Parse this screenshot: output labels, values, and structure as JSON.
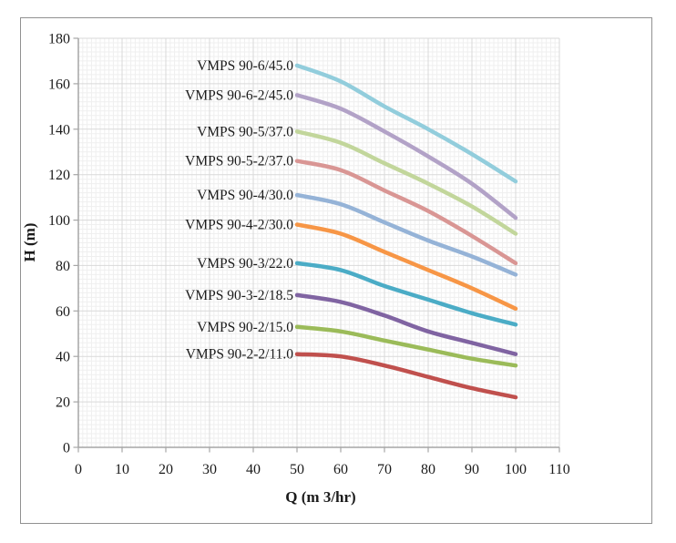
{
  "chart_data": {
    "type": "line",
    "title": "",
    "xlabel": "Q (m 3/hr)",
    "ylabel": "H (m)",
    "xlim": [
      0,
      110
    ],
    "ylim": [
      0,
      180
    ],
    "x_ticks": [
      0,
      10,
      20,
      30,
      40,
      50,
      60,
      70,
      80,
      90,
      100,
      110
    ],
    "y_ticks": [
      180,
      160,
      140,
      120,
      100,
      80,
      60,
      40,
      20,
      0
    ],
    "x_minor_step": 1,
    "y_minor_step": 2,
    "grid": "major and minor gridlines shown",
    "legend_position": "inline labels left of each curve start",
    "x": [
      50,
      60,
      70,
      80,
      90,
      100
    ],
    "series": [
      {
        "name": "VMPS 90-6/45.0",
        "color": "#92CDDC",
        "values": [
          168,
          161,
          150,
          140,
          129,
          117
        ]
      },
      {
        "name": "VMPS 90-6-2/45.0",
        "color": "#B2A2C7",
        "values": [
          155,
          149,
          139,
          128,
          116,
          101
        ]
      },
      {
        "name": "VMPS 90-5/37.0",
        "color": "#C2D69B",
        "values": [
          139,
          134,
          125,
          116,
          106,
          94
        ]
      },
      {
        "name": "VMPS 90-5-2/37.0",
        "color": "#D99694",
        "values": [
          126,
          122,
          113,
          104,
          93,
          81
        ]
      },
      {
        "name": "VMPS 90-4/30.0",
        "color": "#95B3D7",
        "values": [
          111,
          107,
          99,
          91,
          84,
          76
        ]
      },
      {
        "name": "VMPS 90-4-2/30.0",
        "color": "#F79646",
        "values": [
          98,
          94,
          86,
          78,
          70,
          61
        ]
      },
      {
        "name": "VMPS 90-3/22.0",
        "color": "#4BACC6",
        "values": [
          81,
          78,
          71,
          65,
          59,
          54
        ]
      },
      {
        "name": "VMPS 90-3-2/18.5",
        "color": "#8064A2",
        "values": [
          67,
          64,
          58,
          51,
          46,
          41
        ]
      },
      {
        "name": "VMPS 90-2/15.0",
        "color": "#9BBB59",
        "values": [
          53,
          51,
          47,
          43,
          39,
          36
        ]
      },
      {
        "name": "VMPS 90-2-2/11.0",
        "color": "#C0504D",
        "values": [
          41,
          40,
          36,
          31,
          26,
          22
        ]
      }
    ]
  },
  "style": {
    "frame_border": "#919191",
    "axis_line": "#A6A6A6",
    "major_grid": "#D9D9D9",
    "minor_grid": "#EFEFEF",
    "text_color": "#1b1b1b",
    "background": "#FFFFFF"
  }
}
